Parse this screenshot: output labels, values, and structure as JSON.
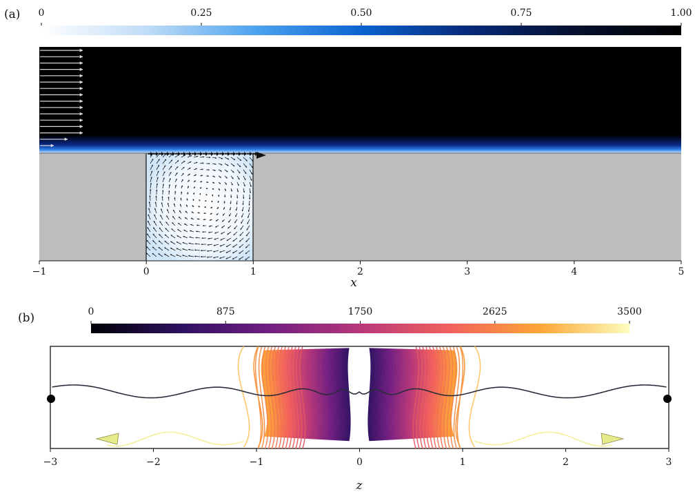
{
  "panels": [
    {
      "label": "(a)",
      "colorbar": {
        "ticks": [
          "0",
          "0.25",
          "0.50",
          "0.75",
          "1.00"
        ],
        "tick_values": [
          0,
          0.25,
          0.5,
          0.75,
          1.0
        ],
        "range": [
          0,
          1
        ],
        "colors": [
          "#ffffff",
          "#bfdcf6",
          "#4ea3ee",
          "#0b63d0",
          "#072a7a",
          "#06102e",
          "#000000"
        ]
      },
      "axis": {
        "xlabel": "x",
        "ticks": [
          "−1",
          "0",
          "1",
          "2",
          "3",
          "4",
          "5"
        ],
        "tick_values": [
          -1,
          0,
          1,
          2,
          3,
          4,
          5
        ],
        "range": [
          -1,
          5
        ]
      },
      "cavity": {
        "x_range": [
          0,
          1
        ]
      },
      "colors": {
        "wall": "#bdbdbd",
        "flow": "#000000",
        "inflow_arrows": "#d9d9d9",
        "vortex_arrows": "#1a1a1a"
      }
    },
    {
      "label": "(b)",
      "colorbar": {
        "ticks": [
          "0",
          "875",
          "1750",
          "2625",
          "3500"
        ],
        "tick_values": [
          0,
          875,
          1750,
          2625,
          3500
        ],
        "range": [
          0,
          3500
        ],
        "colors": [
          "#000004",
          "#2d1160",
          "#721f81",
          "#b73779",
          "#f1605d",
          "#fca636",
          "#fcfdbf"
        ]
      },
      "axis": {
        "xlabel": "z",
        "ticks": [
          "−3",
          "−2",
          "−1",
          "0",
          "1",
          "2",
          "3"
        ],
        "tick_values": [
          -3,
          -2,
          -1,
          0,
          1,
          2,
          3
        ],
        "range": [
          -3,
          3
        ]
      },
      "colors": {
        "centerline": "#2b2b3a",
        "frame": "#000000"
      }
    }
  ]
}
